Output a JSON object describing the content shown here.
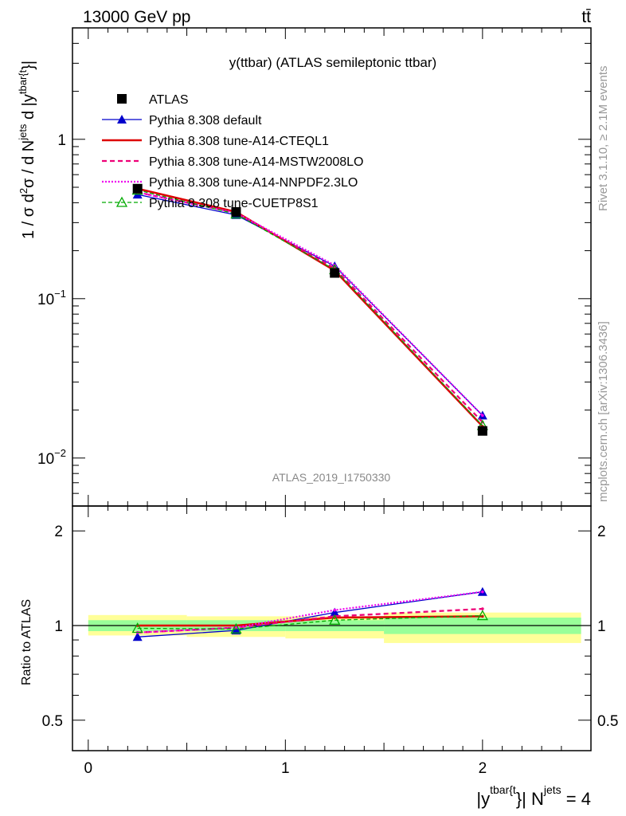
{
  "header": {
    "left": "13000 GeV pp",
    "right": "tt̄"
  },
  "side": {
    "rivet": "Rivet 3.1.10, ≥ 2.1M events",
    "mcplots": "mcplots.cern.ch [arXiv:1306.3436]"
  },
  "watermark": "ATLAS_2019_I1750330",
  "colors": {
    "data": "#000000",
    "default": "#0000cc",
    "cteql1": "#dd0000",
    "mstw": "#ee0077",
    "nnpdf": "#ee00ee",
    "cuetp8s1": "#00aa00",
    "band_outer": "#ffff99",
    "band_inner": "#99ff99"
  },
  "chart_data": [
    {
      "type": "line",
      "title": "y(ttbar) (ATLAS semileptonic ttbar)",
      "ylabel": "1 / σ d²σ / d N^jets d |y^tbar{t}|",
      "yscale": "log",
      "ylim": [
        0.005,
        5
      ],
      "xlim": [
        -0.08,
        2.55
      ],
      "x": [
        0.25,
        0.75,
        1.25,
        2.0
      ],
      "x_bins": [
        [
          0,
          0.5
        ],
        [
          0.5,
          1.0
        ],
        [
          1.0,
          1.5
        ],
        [
          1.5,
          2.5
        ]
      ],
      "y_ticks": [
        {
          "base": "1",
          "exp": ""
        },
        {
          "base": "10",
          "exp": "−1"
        },
        {
          "base": "10",
          "exp": "−2"
        }
      ],
      "legend_position": "top-left",
      "series": [
        {
          "name": "ATLAS",
          "key": "data",
          "values": [
            0.49,
            0.35,
            0.145,
            0.0148
          ]
        },
        {
          "name": "Pythia 8.308 default",
          "key": "default",
          "values": [
            0.45,
            0.335,
            0.16,
            0.0185
          ]
        },
        {
          "name": "Pythia 8.308 tune-A14-CTEQL1",
          "key": "cteql1",
          "values": [
            0.49,
            0.35,
            0.15,
            0.0158
          ]
        },
        {
          "name": "Pythia 8.308 tune-A14-MSTW2008LO",
          "key": "mstw",
          "values": [
            0.465,
            0.345,
            0.155,
            0.0168
          ]
        },
        {
          "name": "Pythia 8.308 tune-A14-NNPDF2.3LO",
          "key": "nnpdf",
          "values": [
            0.465,
            0.345,
            0.162,
            0.0185
          ]
        },
        {
          "name": "Pythia 8.308 tune-CUETP8S1",
          "key": "cuetp8s1",
          "values": [
            0.48,
            0.34,
            0.152,
            0.016
          ]
        }
      ]
    },
    {
      "type": "line",
      "ylabel": "Ratio to ATLAS",
      "xlabel": "|y^tbar{t}| N^jets = 4",
      "ylim": [
        0.4,
        2.4
      ],
      "xlim": [
        -0.08,
        2.55
      ],
      "x_ticks": [
        "0",
        "1",
        "2"
      ],
      "y_ticks": [
        "0.5",
        "1",
        "2"
      ],
      "x": [
        0.25,
        0.75,
        1.25,
        2.0
      ],
      "band_outer": [
        [
          0.93,
          1.08
        ],
        [
          0.92,
          1.07
        ],
        [
          0.91,
          1.07
        ],
        [
          0.88,
          1.1
        ]
      ],
      "band_inner": [
        [
          0.96,
          1.04
        ],
        [
          0.96,
          1.04
        ],
        [
          0.96,
          1.04
        ],
        [
          0.94,
          1.06
        ]
      ],
      "series": [
        {
          "name": "Pythia 8.308 default",
          "key": "default",
          "values": [
            0.92,
            0.965,
            1.1,
            1.28
          ]
        },
        {
          "name": "Pythia 8.308 tune-A14-CTEQL1",
          "key": "cteql1",
          "values": [
            1.0,
            1.0,
            1.06,
            1.07
          ]
        },
        {
          "name": "Pythia 8.308 tune-A14-MSTW2008LO",
          "key": "mstw",
          "values": [
            0.95,
            0.985,
            1.07,
            1.13
          ]
        },
        {
          "name": "Pythia 8.308 tune-A14-NNPDF2.3LO",
          "key": "nnpdf",
          "values": [
            0.95,
            0.985,
            1.12,
            1.28
          ]
        },
        {
          "name": "Pythia 8.308 tune-CUETP8S1",
          "key": "cuetp8s1",
          "values": [
            0.98,
            0.975,
            1.04,
            1.075
          ]
        }
      ]
    }
  ]
}
